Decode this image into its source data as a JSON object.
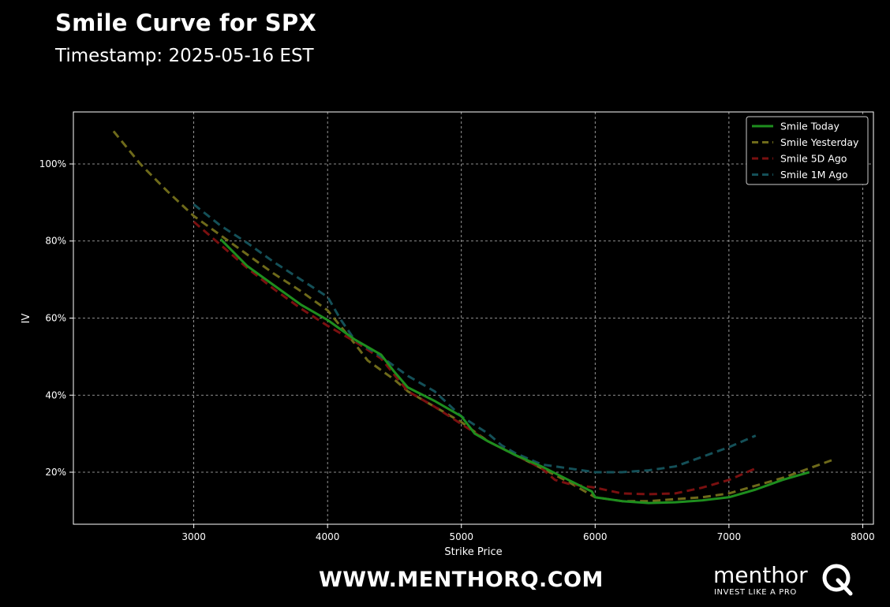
{
  "header": {
    "title": "Smile Curve for SPX",
    "subtitle": "Timestamp: 2025-05-16 EST"
  },
  "footer": {
    "url": "WWW.MENTHORQ.COM",
    "logo_word": "menthor",
    "logo_tagline": "INVEST LIKE A PRO",
    "logo_icon": "q-magnifier-icon"
  },
  "colors": {
    "background": "#000000",
    "frame": "#ffffff",
    "grid": "#bbbbbb",
    "today": "#1e8e1e",
    "yesterday": "#6e6a1a",
    "five_day": "#7a1010",
    "one_month": "#145058"
  },
  "chart_data": {
    "type": "line",
    "xlabel": "Strike Price",
    "ylabel": "IV",
    "xlim": [
      2100,
      8080
    ],
    "ylim": [
      0.065,
      1.135
    ],
    "xticks": [
      3000,
      4000,
      5000,
      6000,
      7000,
      8000
    ],
    "yticks": [
      0.2,
      0.4,
      0.6,
      0.8,
      1.0
    ],
    "ytick_labels": [
      "20%",
      "40%",
      "60%",
      "80%",
      "100%"
    ],
    "grid": true,
    "legend_position": "top-right",
    "series": [
      {
        "name": "Smile Today",
        "style": "solid",
        "color": "#1e8e1e",
        "x": [
          3200,
          3400,
          3600,
          3800,
          4000,
          4200,
          4400,
          4500,
          4600,
          4800,
          5000,
          5100,
          5200,
          5400,
          5600,
          5800,
          5975,
          6000,
          6200,
          6400,
          6600,
          6800,
          7000,
          7200,
          7400,
          7600
        ],
        "y": [
          0.805,
          0.735,
          0.685,
          0.635,
          0.595,
          0.545,
          0.505,
          0.46,
          0.42,
          0.385,
          0.345,
          0.3,
          0.28,
          0.245,
          0.215,
          0.18,
          0.15,
          0.135,
          0.125,
          0.12,
          0.122,
          0.127,
          0.135,
          0.155,
          0.18,
          0.2
        ]
      },
      {
        "name": "Smile Yesterday",
        "style": "dashed",
        "color": "#6e6a1a",
        "x": [
          2400,
          2600,
          2800,
          3000,
          3200,
          3400,
          3600,
          3800,
          4000,
          4200,
          4300,
          4500,
          4600,
          4800,
          5000,
          5200,
          5400,
          5600,
          5800,
          6000,
          6200,
          6400,
          6600,
          6800,
          7000,
          7200,
          7400,
          7600,
          7800
        ],
        "y": [
          1.085,
          1.0,
          0.93,
          0.865,
          0.815,
          0.765,
          0.715,
          0.67,
          0.62,
          0.535,
          0.49,
          0.44,
          0.41,
          0.37,
          0.33,
          0.28,
          0.245,
          0.21,
          0.175,
          0.135,
          0.125,
          0.125,
          0.13,
          0.135,
          0.145,
          0.165,
          0.185,
          0.21,
          0.235
        ]
      },
      {
        "name": "Smile 5D Ago",
        "style": "dashed",
        "color": "#7a1010",
        "x": [
          3000,
          3200,
          3400,
          3600,
          3800,
          4000,
          4200,
          4400,
          4600,
          4800,
          5000,
          5200,
          5400,
          5600,
          5700,
          5800,
          6000,
          6200,
          6400,
          6600,
          6800,
          7000,
          7200
        ],
        "y": [
          0.85,
          0.79,
          0.73,
          0.675,
          0.625,
          0.58,
          0.54,
          0.495,
          0.41,
          0.37,
          0.325,
          0.28,
          0.245,
          0.21,
          0.18,
          0.17,
          0.16,
          0.145,
          0.143,
          0.145,
          0.16,
          0.18,
          0.21
        ]
      },
      {
        "name": "Smile 1M Ago",
        "style": "dashed",
        "color": "#145058",
        "x": [
          3000,
          3200,
          3400,
          3600,
          3800,
          4000,
          4100,
          4200,
          4400,
          4600,
          4800,
          5000,
          5200,
          5300,
          5400,
          5600,
          5800,
          6000,
          6200,
          6400,
          6600,
          6800,
          7000,
          7200
        ],
        "y": [
          0.895,
          0.84,
          0.795,
          0.745,
          0.7,
          0.655,
          0.595,
          0.545,
          0.5,
          0.45,
          0.41,
          0.345,
          0.3,
          0.27,
          0.25,
          0.22,
          0.21,
          0.2,
          0.2,
          0.205,
          0.215,
          0.24,
          0.265,
          0.295
        ]
      }
    ]
  }
}
